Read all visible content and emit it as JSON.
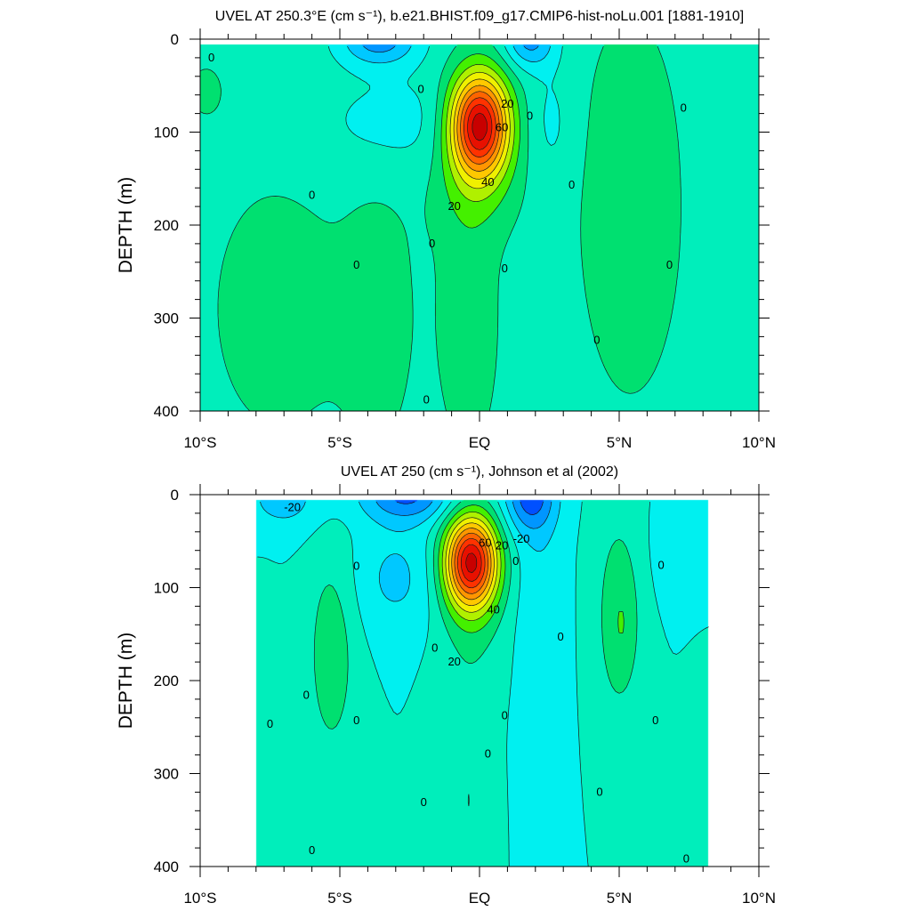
{
  "chart_data": [
    {
      "type": "contour",
      "title_html": "UVEL AT 250.3°E (cm s⁻¹), b.e21.BHIST.f09_g17.CMIP6-hist-noLu.001 [1881-1910]",
      "ylabel": "DEPTH (m)",
      "xlim": [
        -10,
        10
      ],
      "ylim": [
        0,
        400
      ],
      "y_reversed": true,
      "x_ticks": [
        -10,
        -5,
        0,
        5,
        10
      ],
      "x_tick_labels": [
        "10°S",
        "5°S",
        "EQ",
        "5°N",
        "10°N"
      ],
      "y_ticks": [
        0,
        100,
        200,
        300,
        400
      ],
      "y_tick_labels": [
        "0",
        "100",
        "200",
        "300",
        "400"
      ],
      "data_extent": {
        "lat": [
          -10,
          10
        ],
        "depth": [
          5,
          400
        ]
      },
      "contour_interval": 10,
      "core": {
        "lat": 0,
        "depth": 90,
        "max": 100
      },
      "contour_labels": [
        {
          "text": "0",
          "lat": -9.6,
          "depth": 20
        },
        {
          "text": "0",
          "lat": -6.0,
          "depth": 168
        },
        {
          "text": "0",
          "lat": -4.4,
          "depth": 243
        },
        {
          "text": "0",
          "lat": -2.1,
          "depth": 54
        },
        {
          "text": "20",
          "lat": 1.0,
          "depth": 70
        },
        {
          "text": "0",
          "lat": 1.8,
          "depth": 83
        },
        {
          "text": "60",
          "lat": 0.8,
          "depth": 95
        },
        {
          "text": "40",
          "lat": 0.3,
          "depth": 154
        },
        {
          "text": "20",
          "lat": -0.9,
          "depth": 180
        },
        {
          "text": "0",
          "lat": -1.7,
          "depth": 220
        },
        {
          "text": "0",
          "lat": 0.9,
          "depth": 247
        },
        {
          "text": "0",
          "lat": 3.3,
          "depth": 157
        },
        {
          "text": "0",
          "lat": 7.3,
          "depth": 74
        },
        {
          "text": "0",
          "lat": 6.8,
          "depth": 243
        },
        {
          "text": "0",
          "lat": 4.2,
          "depth": 324
        },
        {
          "text": "0",
          "lat": -1.9,
          "depth": 388
        }
      ]
    },
    {
      "type": "contour",
      "title_html": "UVEL AT 250 (cm s⁻¹), Johnson et al (2002)",
      "ylabel": "DEPTH (m)",
      "xlim": [
        -10,
        10
      ],
      "ylim": [
        0,
        400
      ],
      "y_reversed": true,
      "x_ticks": [
        -10,
        -5,
        0,
        5,
        10
      ],
      "x_tick_labels": [
        "10°S",
        "5°S",
        "EQ",
        "5°N",
        "10°N"
      ],
      "y_ticks": [
        0,
        100,
        200,
        300,
        400
      ],
      "y_tick_labels": [
        "0",
        "100",
        "200",
        "300",
        "400"
      ],
      "data_extent": {
        "lat": [
          -8,
          8.2
        ],
        "depth": [
          5,
          400
        ]
      },
      "contour_interval": 10,
      "core": {
        "lat": -0.3,
        "depth": 72,
        "max": 100
      },
      "contour_labels": [
        {
          "text": "-20",
          "lat": -6.7,
          "depth": 14
        },
        {
          "text": "60",
          "lat": 0.2,
          "depth": 52
        },
        {
          "text": "20",
          "lat": 0.8,
          "depth": 55
        },
        {
          "text": "-20",
          "lat": 1.5,
          "depth": 48
        },
        {
          "text": "0",
          "lat": 1.3,
          "depth": 72
        },
        {
          "text": "0",
          "lat": -4.4,
          "depth": 77
        },
        {
          "text": "40",
          "lat": 0.5,
          "depth": 124
        },
        {
          "text": "20",
          "lat": -0.9,
          "depth": 180
        },
        {
          "text": "0",
          "lat": -1.6,
          "depth": 165
        },
        {
          "text": "0",
          "lat": -6.2,
          "depth": 216
        },
        {
          "text": "0",
          "lat": -4.4,
          "depth": 243
        },
        {
          "text": "0",
          "lat": -7.5,
          "depth": 247
        },
        {
          "text": "0",
          "lat": 0.9,
          "depth": 238
        },
        {
          "text": "0",
          "lat": 0.3,
          "depth": 279
        },
        {
          "text": "0",
          "lat": -2.0,
          "depth": 331
        },
        {
          "text": "0",
          "lat": -6.0,
          "depth": 383
        },
        {
          "text": "0",
          "lat": 2.9,
          "depth": 153
        },
        {
          "text": "0",
          "lat": 6.5,
          "depth": 76
        },
        {
          "text": "0",
          "lat": 6.3,
          "depth": 243
        },
        {
          "text": "0",
          "lat": 4.3,
          "depth": 320
        },
        {
          "text": "0",
          "lat": 7.4,
          "depth": 392
        }
      ]
    }
  ],
  "colors": {
    "level_colors": [
      "#0050ff",
      "#0096ff",
      "#00c8ff",
      "#00f0f0",
      "#00eebb",
      "#00e070",
      "#44f000",
      "#b0f000",
      "#f0f000",
      "#ffc800",
      "#ff9600",
      "#ff6400",
      "#ff3200",
      "#e81000",
      "#c80000"
    ],
    "contour_line": "#1a1a1a",
    "frame": "#000000"
  }
}
